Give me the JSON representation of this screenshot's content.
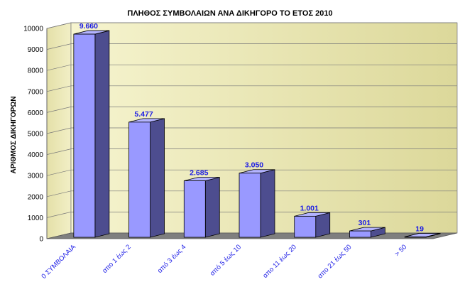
{
  "chart_data": {
    "type": "bar",
    "title": "ΠΛΗΘΟΣ ΣΥΜΒΟΛΑΙΩΝ ΑΝΑ ΔΙΚΗΓΟΡΟ ΤΟ ΕΤΟΣ 2010",
    "xlabel": "",
    "ylabel": "ΑΡΙΘΜΟΣ ΔΙΚΗΓΟΡΩΝ",
    "categories": [
      "0 ΣΥΜΒΟΛΑΙΑ",
      "απο 1 έως 2",
      "από 3 έως 4",
      "από 5 έως 10",
      "απο 11 έως 20",
      "απο 21 έως 50",
      "> 50"
    ],
    "values": [
      9660,
      5477,
      2685,
      3050,
      1001,
      301,
      19
    ],
    "data_labels": [
      "9.660",
      "5.477",
      "2.685",
      "3.050",
      "1.001",
      "301",
      "19"
    ],
    "ylim": [
      0,
      10000
    ],
    "yticks": [
      "0",
      "1000",
      "2000",
      "3000",
      "4000",
      "5000",
      "6000",
      "7000",
      "8000",
      "9000",
      "10000"
    ],
    "grid": true,
    "style": "3d",
    "colors": {
      "bar_front": "#9999ff",
      "bar_side": "#4d4d8f",
      "bar_top": "#b3b3ff",
      "back_wall": "#f3f0c0",
      "floor": "#7f7f7f",
      "label": "#1a1ae6"
    }
  }
}
